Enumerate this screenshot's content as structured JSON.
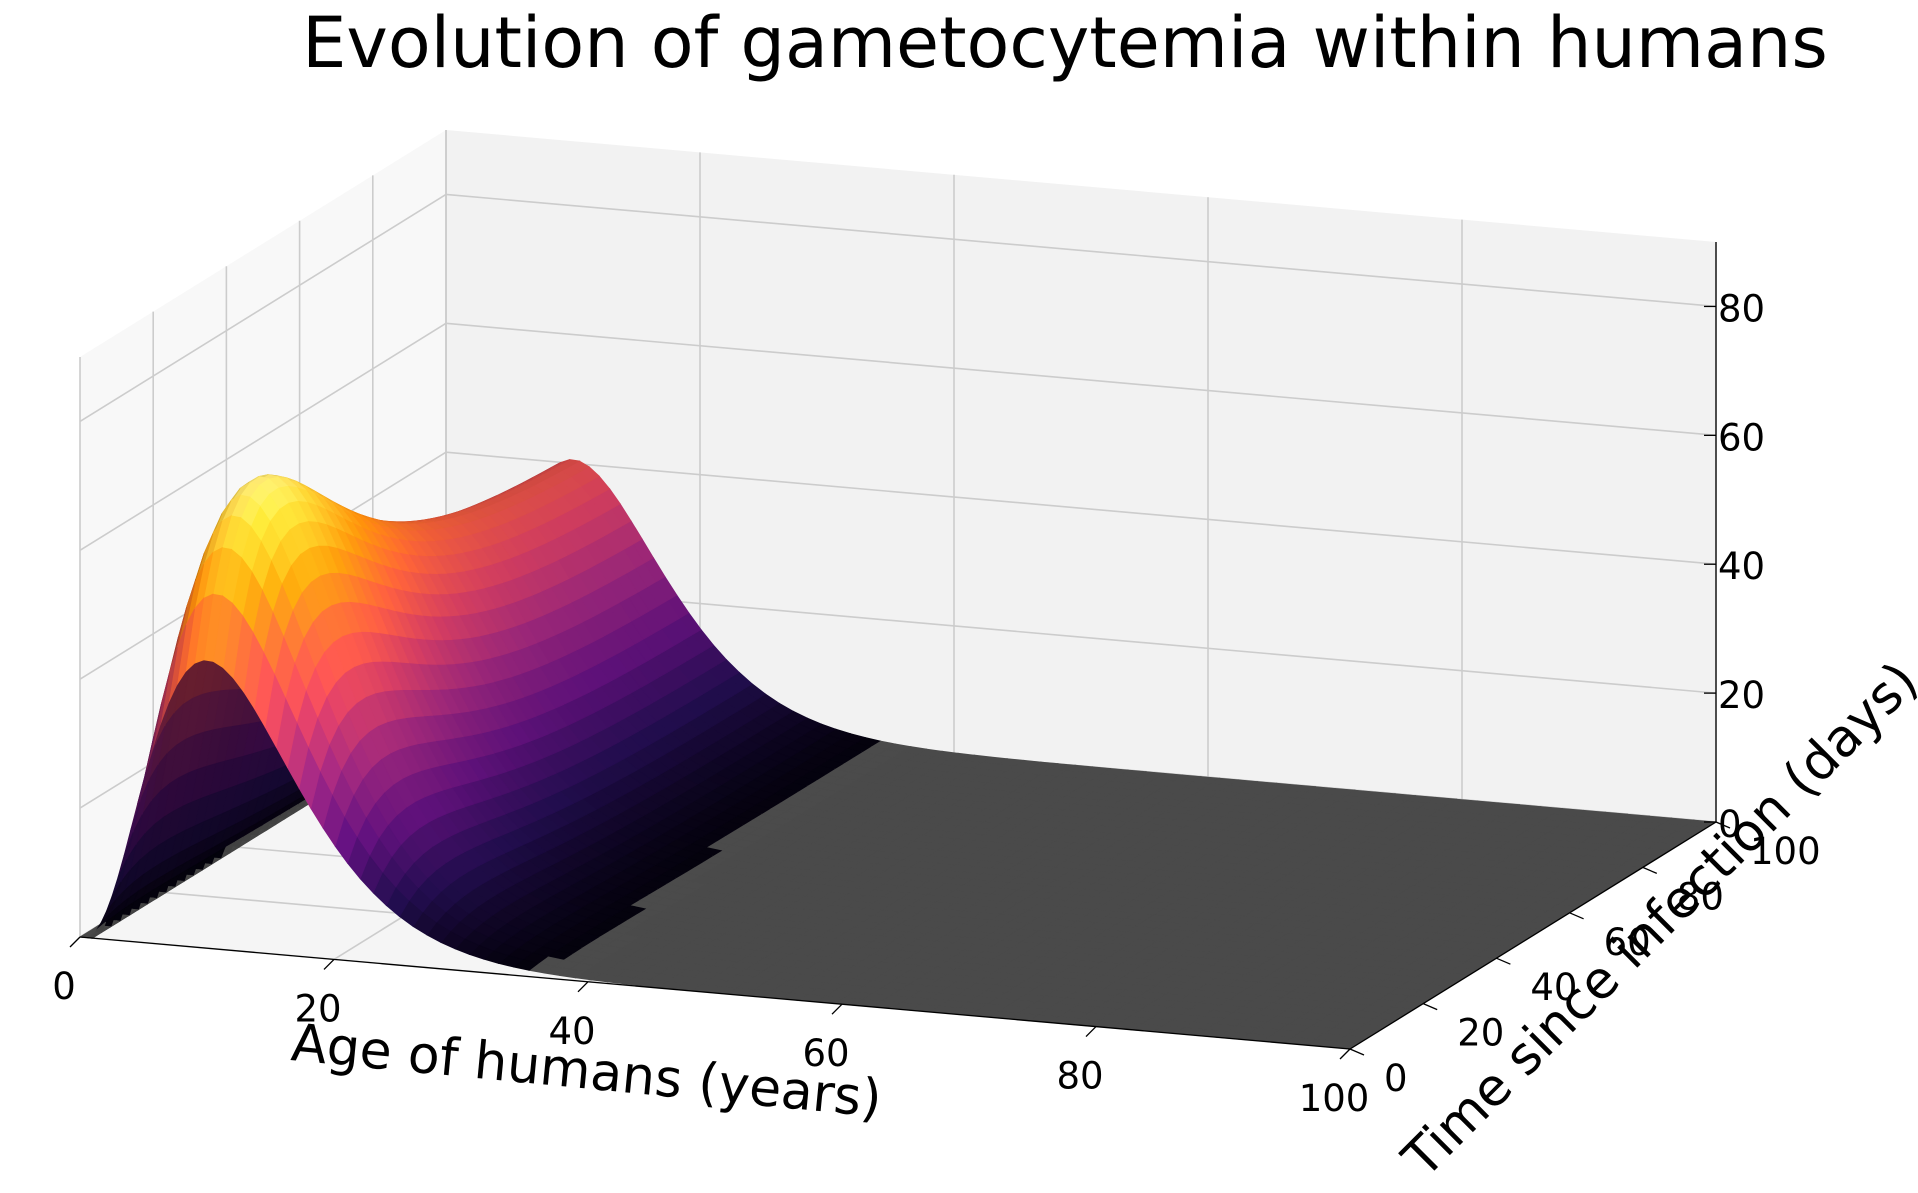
{
  "chart_data": {
    "type": "surface3d",
    "title": "Evolution of gametocytemia within humans",
    "xlabel": "Age of humans (years)",
    "ylabel": "Time since infection (days)",
    "zlabel": "",
    "xlim": [
      0,
      100
    ],
    "ylim": [
      0,
      100
    ],
    "zlim": [
      0,
      90
    ],
    "x_ticks": [
      "0",
      "20",
      "40",
      "60",
      "80",
      "100"
    ],
    "y_ticks": [
      "0",
      "20",
      "40",
      "60",
      "80",
      "100"
    ],
    "z_ticks": [
      "0",
      "20",
      "40",
      "60",
      "80"
    ],
    "colormap": "inferno",
    "grid": true,
    "surface": {
      "peak": {
        "age": 10,
        "time": 14,
        "value": 68
      },
      "ridge_at_time_0": {
        "age": 10,
        "value": 40
      },
      "age_decay_end": 30,
      "time_plateau_end": 20,
      "floor_value": 0
    }
  },
  "colors": {
    "pane_left": "#f8f8f8",
    "pane_back": "#f2f2f2",
    "pane_floor": "#f5f5f5",
    "grid": "#cccccc",
    "surface_floor": "#4a4a4a"
  }
}
